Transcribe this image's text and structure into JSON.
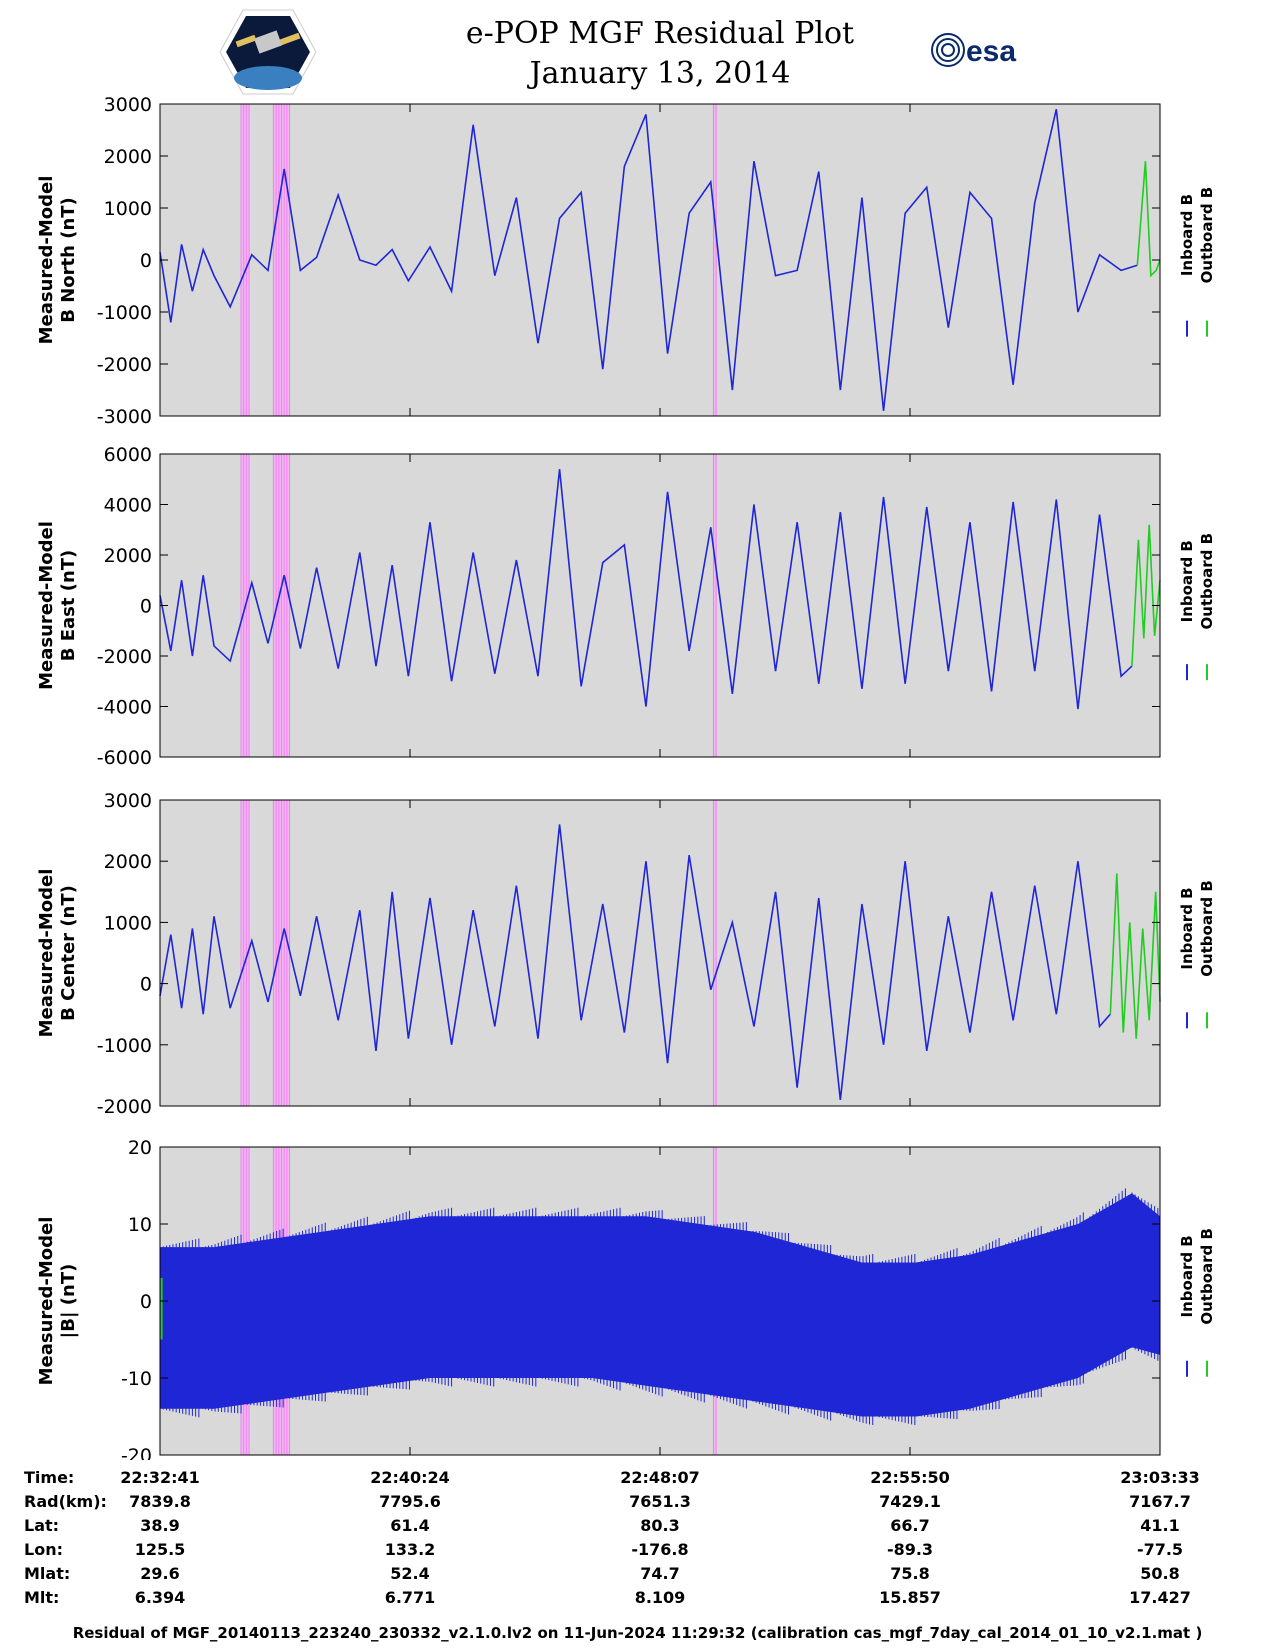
{
  "header": {
    "title_line1": "e-POP MGF Residual Plot",
    "title_line2": "January 13, 2014",
    "logo_left": "cassiope-mission-logo",
    "logo_right": "esa-logo",
    "esa_text": "esa"
  },
  "colors": {
    "inboard": "#1f26d6",
    "outboard": "#22cc22",
    "plot_bg": "#d9d9d9",
    "highlight": "#f4b0f4"
  },
  "chart_data": [
    {
      "type": "line",
      "panel": "B North",
      "ylabel_line1": "Measured-Model",
      "ylabel_line2": "B North (nT)",
      "ylim": [
        -3000,
        3000
      ],
      "yticks": [
        3000,
        2000,
        1000,
        0,
        -1000,
        -2000,
        -3000
      ],
      "xlim_seconds_after_start": [
        0,
        1852
      ],
      "series": [
        {
          "name": "Inboard B",
          "color": "#1f26d6",
          "x": [
            0,
            20,
            40,
            60,
            80,
            100,
            130,
            170,
            200,
            230,
            260,
            290,
            330,
            370,
            400,
            430,
            460,
            500,
            540,
            580,
            620,
            660,
            700,
            740,
            780,
            820,
            860,
            900,
            940,
            980,
            1020,
            1060,
            1100,
            1140,
            1180,
            1220,
            1260,
            1300,
            1340,
            1380,
            1420,
            1460,
            1500,
            1540,
            1580,
            1620,
            1660,
            1700,
            1740,
            1780,
            1810
          ],
          "y": [
            150,
            -1200,
            300,
            -600,
            200,
            -300,
            -900,
            100,
            -200,
            1750,
            -200,
            50,
            1250,
            0,
            -100,
            200,
            -400,
            250,
            -600,
            2600,
            -300,
            1200,
            -1600,
            800,
            1300,
            -2100,
            1800,
            2800,
            -1800,
            900,
            1500,
            -2500,
            1900,
            -300,
            -200,
            1700,
            -2500,
            1200,
            -2900,
            900,
            1400,
            -1300,
            1300,
            800,
            -2400,
            1100,
            2900,
            -1000,
            100,
            -200,
            -100
          ]
        },
        {
          "name": "Outboard B",
          "color": "#22cc22",
          "x": [
            1810,
            1825,
            1835,
            1845,
            1852
          ],
          "y": [
            -100,
            1900,
            -300,
            -200,
            0
          ]
        }
      ],
      "highlight_bands_seconds": [
        [
          150,
          165
        ],
        [
          210,
          240
        ],
        [
          1025,
          1030
        ]
      ]
    },
    {
      "type": "line",
      "panel": "B East",
      "ylabel_line1": "Measured-Model",
      "ylabel_line2": "B East (nT)",
      "ylim": [
        -6000,
        6000
      ],
      "yticks": [
        6000,
        4000,
        2000,
        0,
        -2000,
        -4000,
        -6000
      ],
      "xlim_seconds_after_start": [
        0,
        1852
      ],
      "series": [
        {
          "name": "Inboard B",
          "color": "#1f26d6",
          "x": [
            0,
            20,
            40,
            60,
            80,
            100,
            130,
            170,
            200,
            230,
            260,
            290,
            330,
            370,
            400,
            430,
            460,
            500,
            540,
            580,
            620,
            660,
            700,
            740,
            780,
            820,
            860,
            900,
            940,
            980,
            1020,
            1060,
            1100,
            1140,
            1180,
            1220,
            1260,
            1300,
            1340,
            1380,
            1420,
            1460,
            1500,
            1540,
            1580,
            1620,
            1660,
            1700,
            1740,
            1780,
            1800
          ],
          "y": [
            400,
            -1800,
            1000,
            -2000,
            1200,
            -1600,
            -2200,
            900,
            -1500,
            1200,
            -1700,
            1500,
            -2500,
            2100,
            -2400,
            1600,
            -2800,
            3300,
            -3000,
            2100,
            -2700,
            1800,
            -2800,
            5400,
            -3200,
            1700,
            2400,
            -4000,
            4500,
            -1800,
            3100,
            -3500,
            4000,
            -2600,
            3300,
            -3100,
            3700,
            -3300,
            4300,
            -3100,
            3900,
            -2600,
            3300,
            -3400,
            4100,
            -2600,
            4200,
            -4100,
            3600,
            -2800,
            -2400
          ]
        },
        {
          "name": "Outboard B",
          "color": "#22cc22",
          "x": [
            1800,
            1812,
            1822,
            1832,
            1842,
            1852
          ],
          "y": [
            -2400,
            2600,
            -1300,
            3200,
            -1200,
            1000
          ]
        }
      ],
      "highlight_bands_seconds": [
        [
          150,
          165
        ],
        [
          210,
          240
        ],
        [
          1025,
          1030
        ]
      ]
    },
    {
      "type": "line",
      "panel": "B Center",
      "ylabel_line1": "Measured-Model",
      "ylabel_line2": "B Center (nT)",
      "ylim": [
        -2000,
        3000
      ],
      "yticks": [
        3000,
        2000,
        1000,
        0,
        -1000,
        -2000
      ],
      "xlim_seconds_after_start": [
        0,
        1852
      ],
      "series": [
        {
          "name": "Inboard B",
          "color": "#1f26d6",
          "x": [
            0,
            20,
            40,
            60,
            80,
            100,
            130,
            170,
            200,
            230,
            260,
            290,
            330,
            370,
            400,
            430,
            460,
            500,
            540,
            580,
            620,
            660,
            700,
            740,
            780,
            820,
            860,
            900,
            940,
            980,
            1020,
            1060,
            1100,
            1140,
            1180,
            1220,
            1260,
            1300,
            1340,
            1380,
            1420,
            1460,
            1500,
            1540,
            1580,
            1620,
            1660,
            1700,
            1740,
            1760
          ],
          "y": [
            -200,
            800,
            -400,
            900,
            -500,
            1100,
            -400,
            700,
            -300,
            900,
            -200,
            1100,
            -600,
            1200,
            -1100,
            1500,
            -900,
            1400,
            -1000,
            1200,
            -700,
            1600,
            -900,
            2600,
            -600,
            1300,
            -800,
            2000,
            -1300,
            2100,
            -100,
            1000,
            -700,
            1500,
            -1700,
            1400,
            -1900,
            1300,
            -1000,
            2000,
            -1100,
            1100,
            -800,
            1500,
            -600,
            1600,
            -500,
            2000,
            -700,
            -500
          ]
        },
        {
          "name": "Outboard B",
          "color": "#22cc22",
          "x": [
            1760,
            1772,
            1784,
            1796,
            1808,
            1820,
            1832,
            1844,
            1852
          ],
          "y": [
            -500,
            1800,
            -800,
            1000,
            -900,
            900,
            -600,
            1500,
            -300
          ]
        }
      ],
      "highlight_bands_seconds": [
        [
          150,
          165
        ],
        [
          210,
          240
        ],
        [
          1025,
          1030
        ]
      ]
    },
    {
      "type": "area",
      "panel": "|B|",
      "ylabel_line1": "Measured-Model",
      "ylabel_line2": "|B| (nT)",
      "ylim": [
        -20,
        20
      ],
      "yticks": [
        20,
        10,
        0,
        -10,
        -20
      ],
      "xlim_seconds_after_start": [
        0,
        1852
      ],
      "envelope": {
        "x": [
          0,
          100,
          200,
          300,
          400,
          500,
          600,
          700,
          800,
          900,
          1000,
          1100,
          1200,
          1300,
          1400,
          1500,
          1600,
          1700,
          1800,
          1852
        ],
        "upper": [
          7,
          7,
          8,
          9,
          10,
          11,
          11,
          11,
          11,
          11,
          10,
          9,
          7,
          5,
          5,
          6,
          8,
          10,
          14,
          11
        ],
        "lower": [
          -14,
          -14,
          -13,
          -12,
          -11,
          -10,
          -10,
          -10,
          -10,
          -11,
          -12,
          -13,
          -14,
          -15,
          -15,
          -14,
          -12,
          -10,
          -6,
          -7
        ]
      },
      "series": [
        {
          "name": "Inboard B",
          "color": "#1f26d6"
        },
        {
          "name": "Outboard B",
          "color": "#22cc22"
        }
      ],
      "highlight_bands_seconds": [
        [
          150,
          165
        ],
        [
          210,
          240
        ],
        [
          1025,
          1030
        ]
      ]
    }
  ],
  "legend": {
    "inboard_label": "Inboard B",
    "outboard_label": "Outboard B"
  },
  "info_table": {
    "rows": [
      {
        "label": "Time:",
        "values": [
          "22:32:41",
          "22:40:24",
          "22:48:07",
          "22:55:50",
          "23:03:33"
        ]
      },
      {
        "label": "Rad(km):",
        "values": [
          "7839.8",
          "7795.6",
          "7651.3",
          "7429.1",
          "7167.7"
        ]
      },
      {
        "label": "Lat:",
        "values": [
          "38.9",
          "61.4",
          "80.3",
          "66.7",
          "41.1"
        ]
      },
      {
        "label": "Lon:",
        "values": [
          "125.5",
          "133.2",
          "-176.8",
          "-89.3",
          "-77.5"
        ]
      },
      {
        "label": "Mlat:",
        "values": [
          "29.6",
          "52.4",
          "74.7",
          "75.8",
          "50.8"
        ]
      },
      {
        "label": "Mlt:",
        "values": [
          "6.394",
          "6.771",
          "8.109",
          "15.857",
          "17.427"
        ]
      }
    ]
  },
  "footer": "Residual of MGF_20140113_223240_230332_v2.1.0.lv2 on 11-Jun-2024 11:29:32 (calibration cas_mgf_7day_cal_2014_01_10_v2.1.mat )"
}
